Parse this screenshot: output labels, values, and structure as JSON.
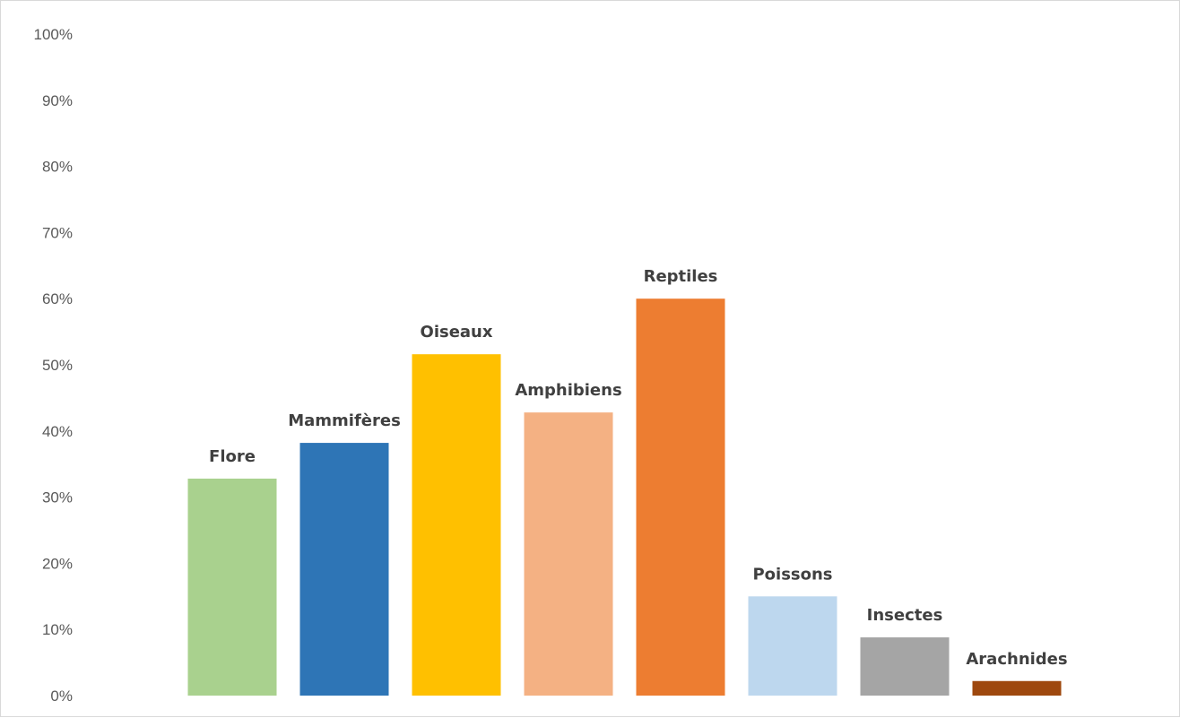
{
  "chart_data": {
    "type": "bar",
    "categories": [
      "Flore",
      "Mammifères",
      "Oiseaux",
      "Amphibiens",
      "Reptiles",
      "Poissons",
      "Insectes",
      "Arachnides"
    ],
    "values": [
      32.8,
      38.2,
      51.6,
      42.8,
      60.0,
      15.0,
      8.8,
      2.2
    ],
    "unit": "%",
    "colors": [
      "#a9d18e",
      "#2e75b6",
      "#ffc000",
      "#f4b183",
      "#ed7d31",
      "#bdd7ee",
      "#a5a5a5",
      "#9e480e"
    ],
    "ylim": [
      0,
      100
    ],
    "yticks": [
      "0%",
      "10%",
      "20%",
      "30%",
      "40%",
      "50%",
      "60%",
      "70%",
      "80%",
      "90%",
      "100%"
    ],
    "ytick_values": [
      0,
      10,
      20,
      30,
      40,
      50,
      60,
      70,
      80,
      90,
      100
    ],
    "grid": false,
    "legend": "none",
    "data_labels": "category-name-above-bar"
  }
}
